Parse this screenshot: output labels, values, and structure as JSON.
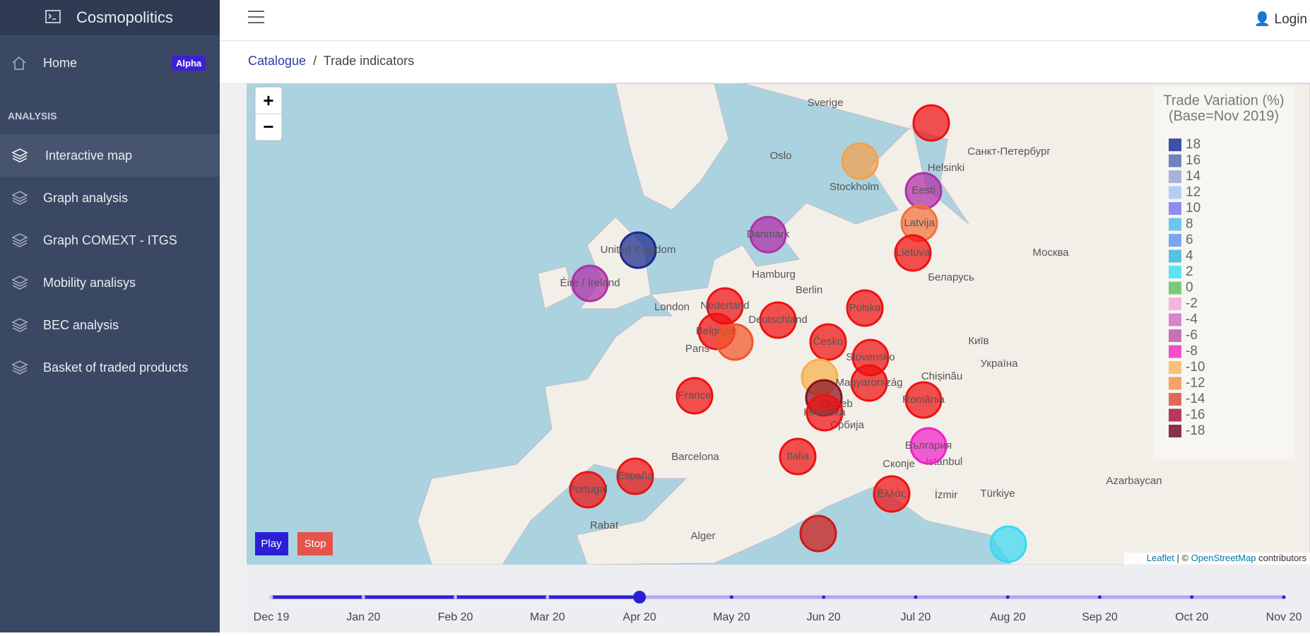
{
  "app": {
    "title": "Cosmopolitics",
    "login": "Login"
  },
  "sidebar": {
    "home": "Home",
    "badge": "Alpha",
    "section": "ANALYSIS",
    "items": [
      "Interactive map",
      "Graph analysis",
      "Graph COMEXT - ITGS",
      "Mobility analisys",
      "BEC analysis",
      "Basket of traded products"
    ]
  },
  "breadcrumb": [
    "Catalogue",
    "Trade indicators"
  ],
  "map": {
    "zoom_in": "+",
    "zoom_out": "−",
    "legend": {
      "title": "Trade Variation (%)",
      "subtitle": "(Base=Nov 2019)",
      "items": [
        {
          "value": 18,
          "color": "#3f51a8"
        },
        {
          "value": 16,
          "color": "#6f82c0"
        },
        {
          "value": 14,
          "color": "#a7b3db"
        },
        {
          "value": 12,
          "color": "#b3cdf2"
        },
        {
          "value": 10,
          "color": "#8f8cf0"
        },
        {
          "value": 8,
          "color": "#6fc4f2"
        },
        {
          "value": 6,
          "color": "#7aa5f0"
        },
        {
          "value": 4,
          "color": "#55c3e0"
        },
        {
          "value": 2,
          "color": "#5fe3f0"
        },
        {
          "value": 0,
          "color": "#7cc97c"
        },
        {
          "value": -2,
          "color": "#f2b6dd"
        },
        {
          "value": -4,
          "color": "#d685cc"
        },
        {
          "value": -6,
          "color": "#c971b8"
        },
        {
          "value": -8,
          "color": "#f04fc8"
        },
        {
          "value": -10,
          "color": "#f7c17a"
        },
        {
          "value": -12,
          "color": "#f5a26a"
        },
        {
          "value": -14,
          "color": "#e0685a"
        },
        {
          "value": -16,
          "color": "#b8375e"
        },
        {
          "value": -18,
          "color": "#8a3244"
        }
      ]
    },
    "places": [
      "Sverige",
      "Oslo",
      "Stockholm",
      "Helsinki",
      "Санкт-Петербург",
      "Hamburg",
      "London",
      "Paris",
      "Berlin",
      "Москва",
      "Беларусь",
      "Київ",
      "Україна",
      "Chișinău",
      "Zagreb",
      "Србија",
      "Barcelona",
      "Istanbul",
      "Rabat",
      "Alger",
      "İzmir",
      "Türkiye",
      "Azarbaycan",
      "Скопје"
    ],
    "markers": [
      {
        "color": "#ee1111"
      },
      {
        "color": "#f5a04a"
      },
      {
        "label": "Eesti",
        "color": "#b02ea8"
      },
      {
        "label": "Latvija",
        "color": "#f2703a"
      },
      {
        "label": "Lietuva",
        "color": "#ee1111"
      },
      {
        "label": "Danmark",
        "color": "#b02ea8"
      },
      {
        "label": "United Kingdom",
        "color": "#1a2a8c"
      },
      {
        "label": "Éire / Ireland",
        "color": "#b02ea8"
      },
      {
        "label": "Nederland",
        "color": "#ee1111"
      },
      {
        "label": "Belgique",
        "color": "#ee1111"
      },
      {
        "color": "#f2552a"
      },
      {
        "label": "Deutschland",
        "color": "#ee1111"
      },
      {
        "label": "Polska",
        "color": "#ee1111"
      },
      {
        "label": "Česko",
        "color": "#ee1111"
      },
      {
        "label": "Slovensko",
        "color": "#ee1111"
      },
      {
        "color": "#f5b04a"
      },
      {
        "label": "Magyarország",
        "color": "#ee1111"
      },
      {
        "color": "#8a1020"
      },
      {
        "label": "Hrvatska",
        "color": "#ee1111"
      },
      {
        "label": "România",
        "color": "#ee1111"
      },
      {
        "label": "България",
        "color": "#f020c8"
      },
      {
        "label": "France",
        "color": "#ee1111"
      },
      {
        "label": "España",
        "color": "#ee1111"
      },
      {
        "label": "Portugal",
        "color": "#ee1111"
      },
      {
        "label": "Italia",
        "color": "#ee1111"
      },
      {
        "label": "Ελλάς",
        "color": "#ee1111"
      },
      {
        "color": "#d01818"
      },
      {
        "color": "#3ad8f0"
      }
    ],
    "play": "Play",
    "stop": "Stop",
    "attribution": {
      "leaflet": "Leaflet",
      "sep": "| ©",
      "osm": "OpenStreetMap",
      "rest": "contributors"
    }
  },
  "timeline": [
    "Dec 19",
    "Jan 20",
    "Feb 20",
    "Mar 20",
    "Apr 20",
    "May 20",
    "Jun 20",
    "Jul 20",
    "Aug 20",
    "Sep 20",
    "Oct 20",
    "Nov 20"
  ]
}
